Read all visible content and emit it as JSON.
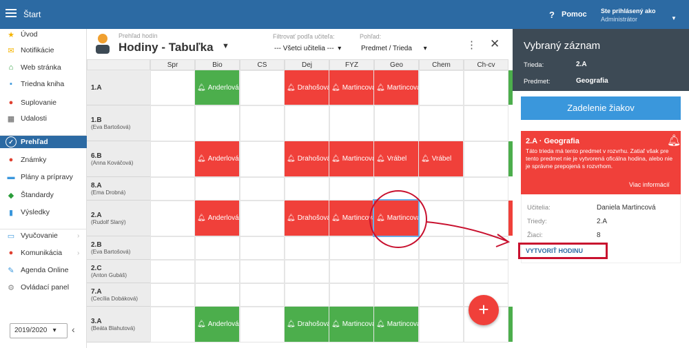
{
  "topbar": {
    "title": "Štart",
    "help_label": "Pomoc",
    "user_line1": "Ste prihlásený ako",
    "user_line2": "Administrátor"
  },
  "sidebar": {
    "items": [
      {
        "label": "Úvod",
        "icon": "star-icon"
      },
      {
        "label": "Notifikácie",
        "icon": "envelope-icon"
      },
      {
        "label": "Web stránka",
        "icon": "home-icon"
      },
      {
        "label": "Triedna kniha",
        "icon": "book-icon"
      },
      {
        "label": "Suplovanie",
        "icon": "person-icon"
      },
      {
        "label": "Udalosti",
        "icon": "calendar-icon"
      },
      {
        "label": "Prehľad",
        "icon": "check-circle-icon"
      },
      {
        "label": "Známky",
        "icon": "grade-icon"
      },
      {
        "label": "Plány a prípravy",
        "icon": "briefcase-icon"
      },
      {
        "label": "Štandardy",
        "icon": "shield-icon"
      },
      {
        "label": "Výsledky",
        "icon": "bar-chart-icon"
      },
      {
        "label": "Vyučovanie",
        "icon": "book-open-icon"
      },
      {
        "label": "Komunikácia",
        "icon": "chat-icon"
      },
      {
        "label": "Agenda Online",
        "icon": "pen-icon"
      },
      {
        "label": "Ovládací panel",
        "icon": "gear-icon"
      }
    ],
    "year": "2019/2020"
  },
  "header": {
    "subtitle": "Prehľad hodín",
    "title": "Hodiny - Tabuľka",
    "filter_label": "Filtrovať podľa učiteľa:",
    "filter_value": "--- Všetci učitelia ---",
    "view_label": "Pohľad:",
    "view_value": "Predmet / Trieda"
  },
  "grid": {
    "columns": [
      "Spr",
      "Bio",
      "CS",
      "Dej",
      "FYZ",
      "Geo",
      "Chem",
      "Ch-cv"
    ],
    "rows": [
      {
        "cls": "1.A",
        "teacher": ""
      },
      {
        "cls": "1.B",
        "teacher": "(Eva Bartošová)"
      },
      {
        "cls": "6.B",
        "teacher": "(Anna Kováčová)"
      },
      {
        "cls": "8.A",
        "teacher": "(Ema Drobná)"
      },
      {
        "cls": "2.A",
        "teacher": "(Rudolf Slaný)"
      },
      {
        "cls": "2.B",
        "teacher": "(Eva Bartošová)"
      },
      {
        "cls": "2.C",
        "teacher": "(Anton Gubáš)"
      },
      {
        "cls": "7.A",
        "teacher": "(Cecília Dobáková)"
      },
      {
        "cls": "3.A",
        "teacher": "(Beáta Blahutová)"
      }
    ],
    "lessons": [
      {
        "row": 0,
        "col": 1,
        "name": "Anderlová",
        "color": "green"
      },
      {
        "row": 0,
        "col": 3,
        "name": "Drahošová",
        "color": "red"
      },
      {
        "row": 0,
        "col": 4,
        "name": "Martincová",
        "color": "red"
      },
      {
        "row": 0,
        "col": 5,
        "name": "Martincová",
        "color": "red"
      },
      {
        "row": 2,
        "col": 1,
        "name": "Anderlová",
        "color": "red"
      },
      {
        "row": 2,
        "col": 3,
        "name": "Drahošová",
        "color": "red"
      },
      {
        "row": 2,
        "col": 4,
        "name": "Martincová",
        "color": "red"
      },
      {
        "row": 2,
        "col": 5,
        "name": "Vrábel",
        "color": "red"
      },
      {
        "row": 2,
        "col": 6,
        "name": "Vrábel",
        "color": "red"
      },
      {
        "row": 4,
        "col": 1,
        "name": "Anderlová",
        "color": "red"
      },
      {
        "row": 4,
        "col": 3,
        "name": "Drahošová",
        "color": "red"
      },
      {
        "row": 4,
        "col": 4,
        "name": "Martincová",
        "color": "red"
      },
      {
        "row": 4,
        "col": 5,
        "name": "Martincová",
        "color": "red"
      },
      {
        "row": 8,
        "col": 1,
        "name": "Anderlová",
        "color": "green"
      },
      {
        "row": 8,
        "col": 3,
        "name": "Drahošová",
        "color": "green"
      },
      {
        "row": 8,
        "col": 4,
        "name": "Martincová",
        "color": "green"
      },
      {
        "row": 8,
        "col": 5,
        "name": "Martincová",
        "color": "green"
      }
    ]
  },
  "fab_label": "+",
  "panel": {
    "title": "Vybraný záznam",
    "class_label": "Trieda:",
    "class_value": "2.A",
    "subject_label": "Predmet:",
    "subject_value": "Geografia",
    "assign_button": "Zadelenie žiakov",
    "card_title": "2.A · Geografia",
    "card_text": "Táto trieda má tento predmet v rozvrhu. Zatiaľ však pre tento predmet nie je vytvorená oficálna hodina, alebo nie je správne prepojená s rozvrhom.",
    "card_more": "Viac informácií",
    "teachers_label": "Učitelia:",
    "teachers_value": "Daniela Martincová",
    "classes_label": "Triedy:",
    "classes_value": "2.A",
    "pupils_label": "Žiaci:",
    "pupils_value": "8",
    "create_button": "VYTVORIŤ HODINU"
  },
  "colors": {
    "brand": "#2c6aa3",
    "red": "#f0403a",
    "green": "#4cae4c",
    "panel_dark": "#3d4a55",
    "annotation": "#c8102e"
  }
}
